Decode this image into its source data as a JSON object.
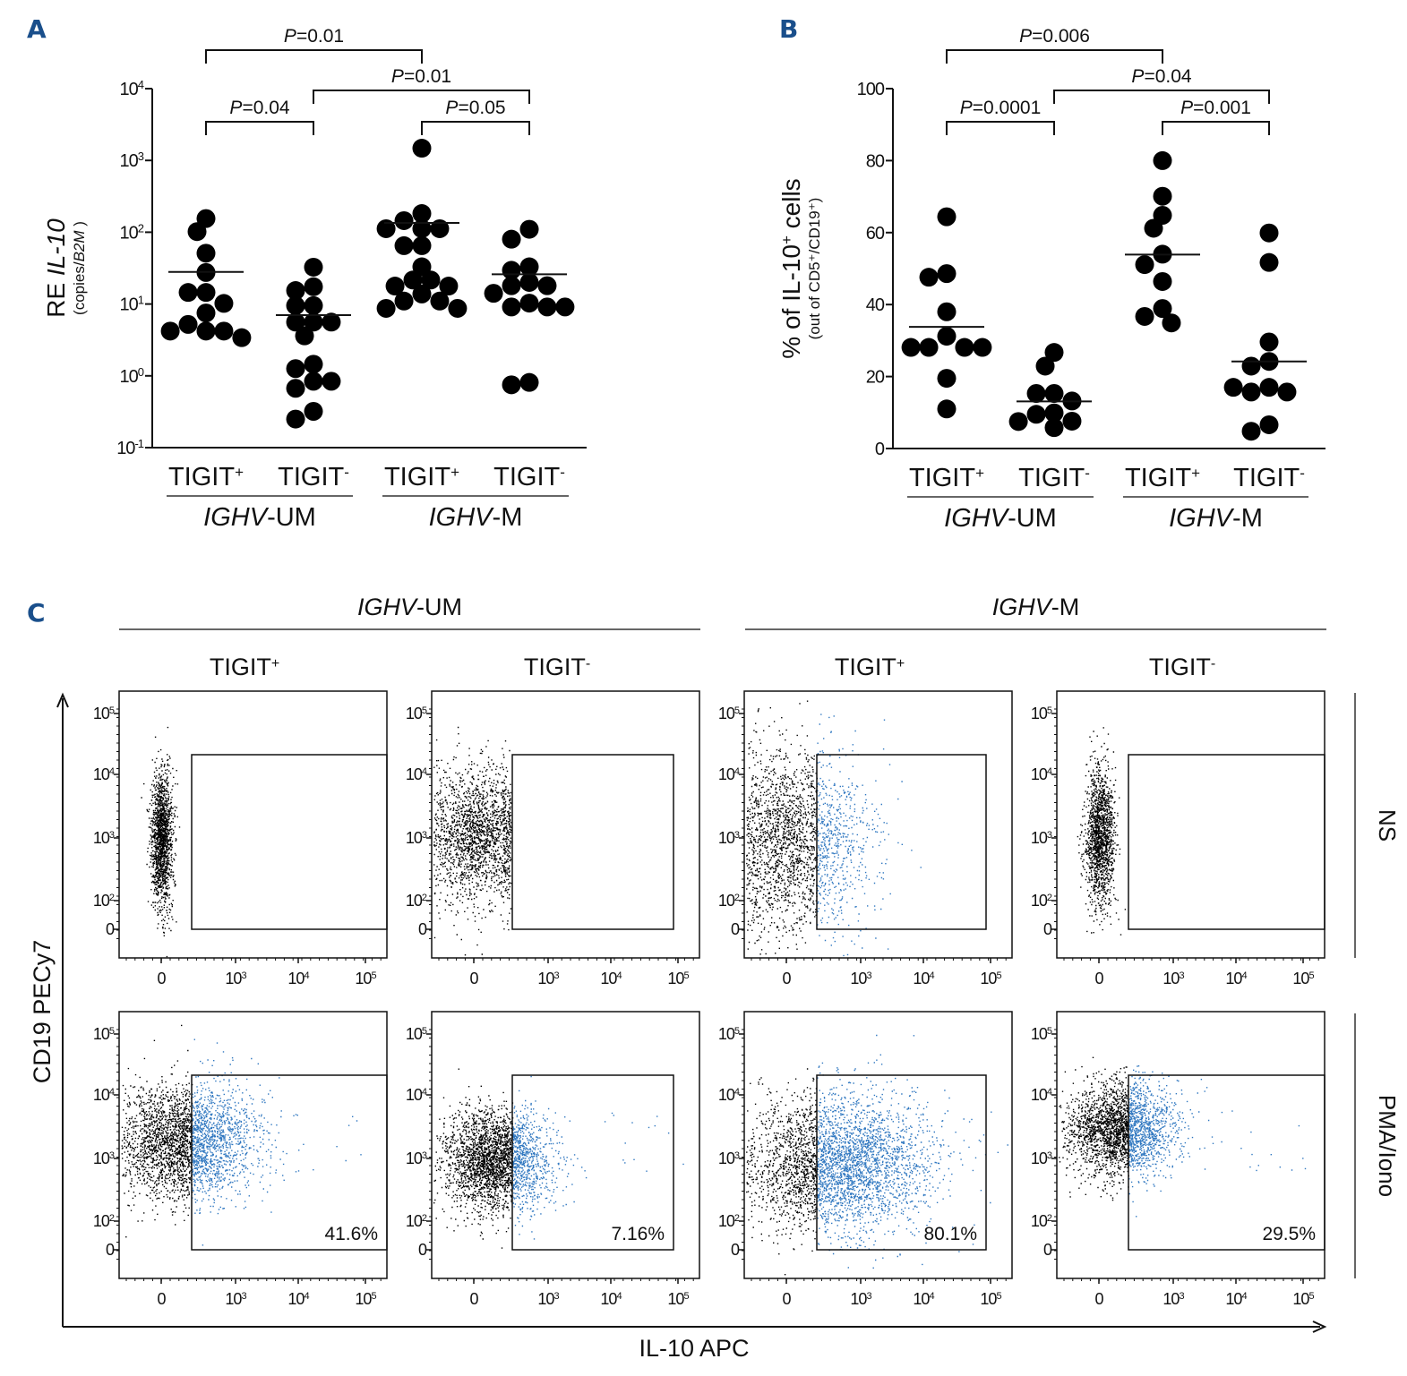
{
  "panel_letters": {
    "a": "A",
    "b": "B",
    "c": "C"
  },
  "chart_data": [
    {
      "id": "panel-a",
      "type": "scatter",
      "subtype": "dot-plot-with-mean",
      "title": "",
      "ylabel_main": "RE ",
      "ylabel_italic": "IL-10",
      "ylabel_sub_prefix": "(copies/",
      "ylabel_sub_italic": "B2M",
      "ylabel_sub_suffix": " )",
      "yscale": "log",
      "ylim": [
        0.1,
        10000
      ],
      "ytick_labels": [
        {
          "base": "10",
          "exp": "-1",
          "value": 0.1
        },
        {
          "base": "10",
          "exp": "0",
          "value": 1
        },
        {
          "base": "10",
          "exp": "1",
          "value": 10
        },
        {
          "base": "10",
          "exp": "2",
          "value": 100
        },
        {
          "base": "10",
          "exp": "3",
          "value": 1000
        },
        {
          "base": "10",
          "exp": "4",
          "value": 10000
        }
      ],
      "categories": [
        {
          "label": "TIGIT",
          "sup": "+",
          "group": "IGHV-UM"
        },
        {
          "label": "TIGIT",
          "sup": "-",
          "group": "IGHV-UM"
        },
        {
          "label": "TIGIT",
          "sup": "+",
          "group": "IGHV-M"
        },
        {
          "label": "TIGIT",
          "sup": "-",
          "group": "IGHV-M"
        }
      ],
      "groups": [
        {
          "italic": "IGHV",
          "suffix": "-UM"
        },
        {
          "italic": "IGHV",
          "suffix": "-M"
        }
      ],
      "series": [
        {
          "name": "TIGIT+ IGHV-UM",
          "mean": 28,
          "values": [
            155,
            102,
            51,
            27.5,
            14.5,
            14.5,
            10.2,
            7.5,
            5.2,
            4.2,
            4.2,
            4.2,
            3.4
          ]
        },
        {
          "name": "TIGIT- IGHV-UM",
          "mean": 7,
          "values": [
            32.6,
            17.4,
            15.4,
            9.5,
            9.5,
            5.6,
            5.6,
            5.6,
            3.6,
            1.45,
            1.26,
            0.84,
            0.84,
            0.67,
            0.32,
            0.25
          ]
        },
        {
          "name": "TIGIT+ IGHV-M",
          "mean": 135,
          "values": [
            1480,
            182,
            145,
            112,
            112,
            112,
            65,
            65,
            33,
            21.6,
            21.6,
            17.8,
            17.8,
            13.8,
            11,
            11,
            8.7,
            8.7
          ]
        },
        {
          "name": "TIGIT- IGHV-M",
          "mean": 26,
          "values": [
            110,
            80,
            33,
            29.5,
            20,
            18,
            18,
            14.1,
            10.3,
            9.1,
            9.1,
            9.1,
            0.81,
            0.75
          ]
        }
      ],
      "comparisons": [
        {
          "from": 0,
          "to": 2,
          "p_italic": "P",
          "p_value": "=0.01",
          "level": 3
        },
        {
          "from": 1,
          "to": 3,
          "p_italic": "P",
          "p_value": "=0.01",
          "level": 2
        },
        {
          "from": 0,
          "to": 1,
          "p_italic": "P",
          "p_value": "=0.04",
          "level": 1
        },
        {
          "from": 2,
          "to": 3,
          "p_italic": "P",
          "p_value": "=0.05",
          "level": 1
        }
      ]
    },
    {
      "id": "panel-b",
      "type": "scatter",
      "subtype": "dot-plot-with-mean",
      "title": "",
      "ylabel_main": "% of IL-10",
      "ylabel_main_sup": "+",
      "ylabel_main_suffix": " cells",
      "ylabel_sub": "(out of CD5⁺/CD19⁺)",
      "yscale": "linear",
      "ylim": [
        0,
        100
      ],
      "yticks": [
        0,
        20,
        40,
        60,
        80,
        100
      ],
      "categories": [
        {
          "label": "TIGIT",
          "sup": "+",
          "group": "IGHV-UM"
        },
        {
          "label": "TIGIT",
          "sup": "-",
          "group": "IGHV-UM"
        },
        {
          "label": "TIGIT",
          "sup": "+",
          "group": "IGHV-M"
        },
        {
          "label": "TIGIT",
          "sup": "-",
          "group": "IGHV-M"
        }
      ],
      "groups": [
        {
          "italic": "IGHV",
          "suffix": "-UM"
        },
        {
          "italic": "IGHV",
          "suffix": "-M"
        }
      ],
      "series": [
        {
          "name": "TIGIT+ IGHV-UM",
          "mean": 33.8,
          "values": [
            64.4,
            48.6,
            47.6,
            38.0,
            31.2,
            28.1,
            28.1,
            28.1,
            28.1,
            19.5,
            11.0
          ]
        },
        {
          "name": "TIGIT- IGHV-UM",
          "mean": 13.1,
          "values": [
            26.7,
            22.9,
            15.3,
            15.3,
            13.2,
            9.9,
            9.5,
            7.6,
            7.5,
            5.8
          ]
        },
        {
          "name": "TIGIT+ IGHV-M",
          "mean": 53.9,
          "values": [
            80.0,
            70.1,
            64.8,
            61.2,
            54.0,
            51.1,
            46.4,
            38.9,
            36.7,
            34.9
          ]
        },
        {
          "name": "TIGIT- IGHV-M",
          "mean": 24.2,
          "values": [
            59.9,
            51.7,
            29.6,
            24.2,
            22.9,
            17.0,
            15.7,
            15.7,
            17.0,
            6.6,
            4.8
          ]
        }
      ],
      "comparisons": [
        {
          "from": 0,
          "to": 2,
          "p_italic": "P",
          "p_value": "=0.006",
          "level": 3
        },
        {
          "from": 1,
          "to": 3,
          "p_italic": "P",
          "p_value": "=0.04",
          "level": 2
        },
        {
          "from": 0,
          "to": 1,
          "p_italic": "P",
          "p_value": "=0.0001",
          "level": 1
        },
        {
          "from": 2,
          "to": 3,
          "p_italic": "P",
          "p_value": "=0.001",
          "level": 1
        }
      ]
    },
    {
      "id": "panel-c",
      "type": "scatter",
      "subtype": "flow-cytometry-grid",
      "xlabel": "IL-10 APC",
      "ylabel": "CD19 PECy7",
      "column_groups": [
        {
          "italic": "IGHV",
          "suffix": "-UM"
        },
        {
          "italic": "IGHV",
          "suffix": "-M"
        }
      ],
      "columns": [
        {
          "label": "TIGIT",
          "sup": "+"
        },
        {
          "label": "TIGIT",
          "sup": "-"
        },
        {
          "label": "TIGIT",
          "sup": "+"
        },
        {
          "label": "TIGIT",
          "sup": "-"
        }
      ],
      "rows": [
        {
          "label": "NS"
        },
        {
          "label": "PMA/Iono"
        }
      ],
      "axis_ticks": {
        "x": [
          {
            "base": "0",
            "exp": ""
          },
          {
            "base": "10",
            "exp": "3"
          },
          {
            "base": "10",
            "exp": "4"
          },
          {
            "base": "10",
            "exp": "5"
          }
        ],
        "y": [
          {
            "base": "0",
            "exp": ""
          },
          {
            "base": "10",
            "exp": "2"
          },
          {
            "base": "10",
            "exp": "3"
          },
          {
            "base": "10",
            "exp": "4"
          },
          {
            "base": "10",
            "exp": "5"
          }
        ]
      },
      "gate_percentages": [
        [
          "",
          "",
          "",
          ""
        ],
        [
          "41.6%",
          "7.16%",
          "80.1%",
          "29.5%"
        ]
      ],
      "colors": {
        "negative_events": "#000000",
        "positive_events": "#2f77c0"
      }
    }
  ]
}
